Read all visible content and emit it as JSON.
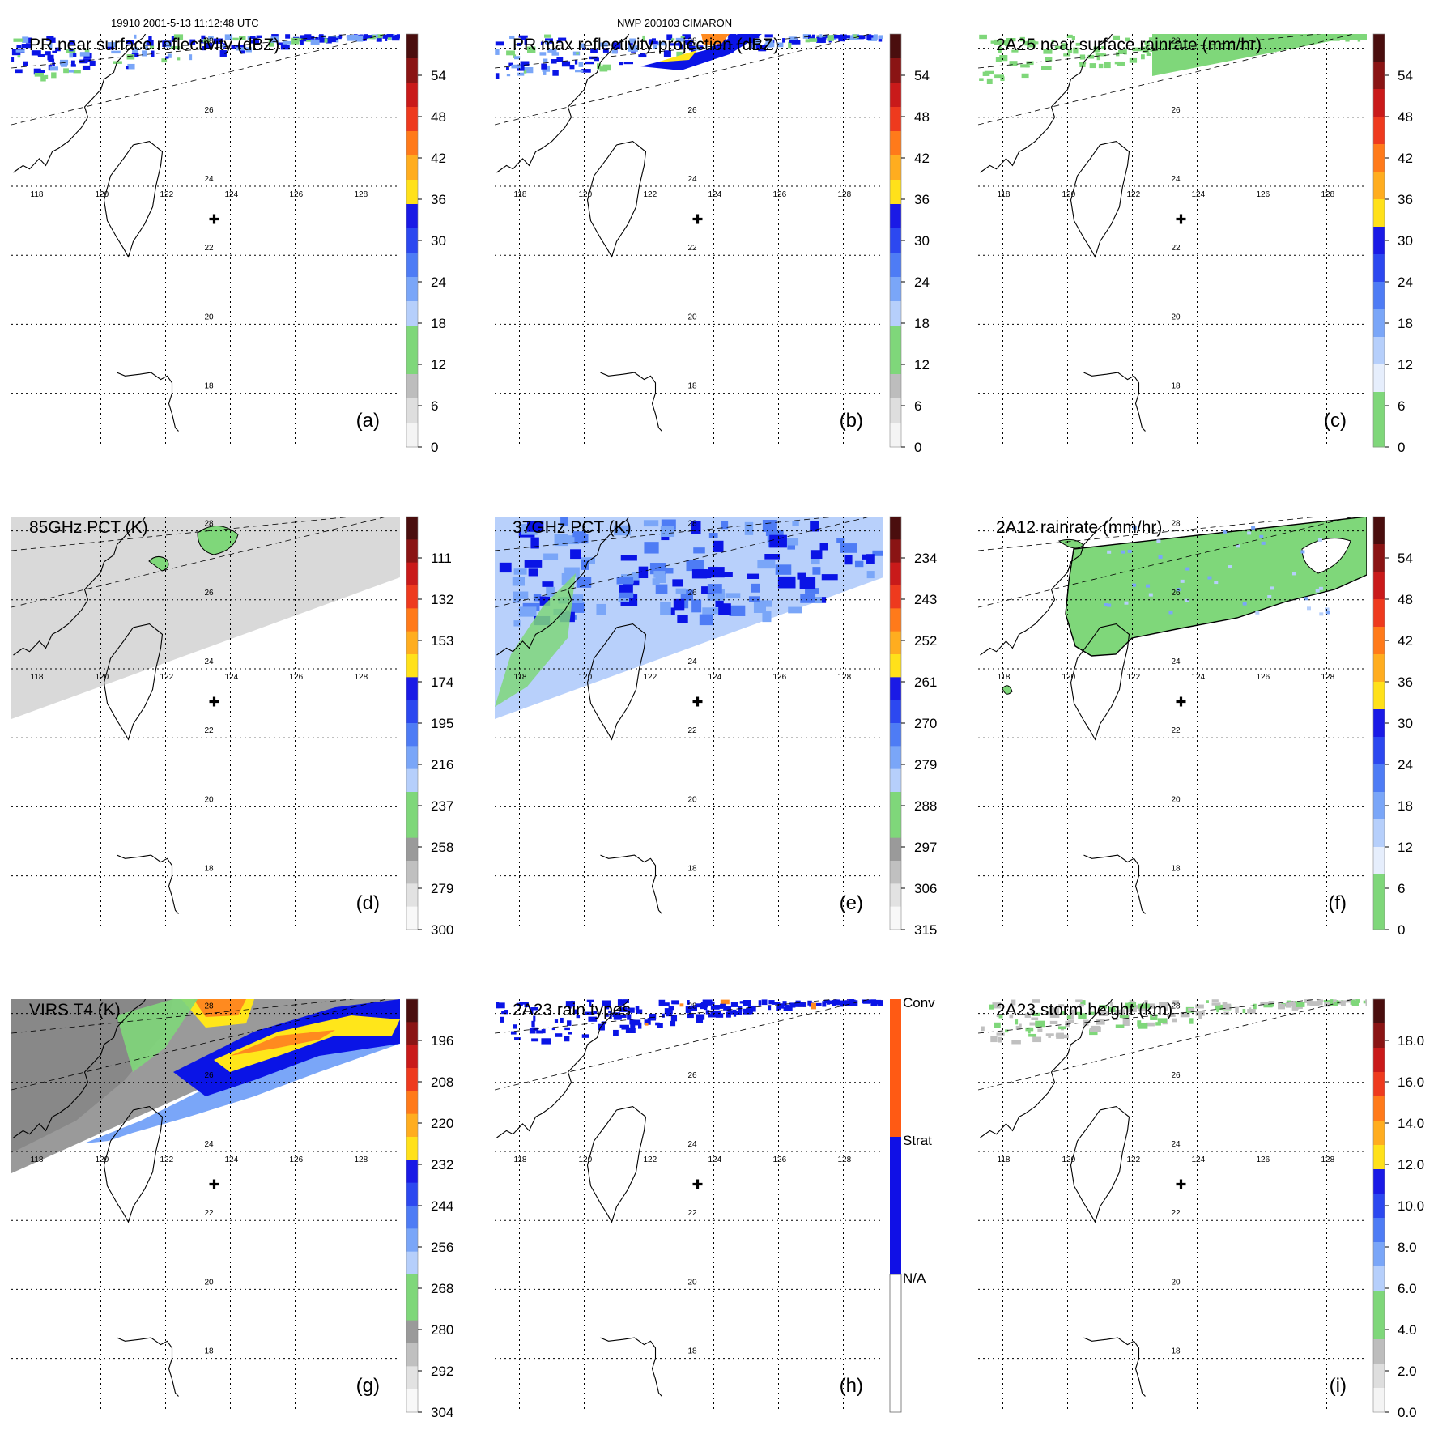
{
  "header": {
    "orbit_time": "19910 2001-5-13 11:12:48 UTC",
    "storm": "NWP 200103 CIMARON"
  },
  "map_axes": {
    "lon_labels": [
      "118",
      "120",
      "122",
      "124",
      "126",
      "128"
    ],
    "lat_labels": [
      "28",
      "26",
      "24",
      "22",
      "20",
      "18"
    ],
    "storm_center": {
      "lon": 123.5,
      "lat": 23.05
    }
  },
  "panels": [
    {
      "id": "a",
      "title": "PR near surface reflectivity (dBZ)",
      "letter": "(a)",
      "swath": "pr",
      "colorbar": {
        "labels": [
          "54",
          "48",
          "42",
          "36",
          "30",
          "24",
          "18",
          "12",
          "6",
          "0"
        ]
      }
    },
    {
      "id": "b",
      "title": "PR max reflectivity projection (dBZ)",
      "letter": "(b)",
      "swath": "pr",
      "colorbar": {
        "labels": [
          "54",
          "48",
          "42",
          "36",
          "30",
          "24",
          "18",
          "12",
          "6",
          "0"
        ]
      }
    },
    {
      "id": "c",
      "title": "2A25 near surface rainrate (mm/hr)",
      "letter": "(c)",
      "swath": "pr",
      "colorbar": {
        "labels": [
          "54",
          "48",
          "42",
          "36",
          "30",
          "24",
          "18",
          "12",
          "6",
          "0"
        ]
      }
    },
    {
      "id": "d",
      "title": "85GHz PCT (K)",
      "letter": "(d)",
      "swath": "tmi",
      "colorbar": {
        "labels": [
          "111",
          "132",
          "153",
          "174",
          "195",
          "216",
          "237",
          "258",
          "279",
          "300"
        ]
      }
    },
    {
      "id": "e",
      "title": "37GHz PCT (K)",
      "letter": "(e)",
      "swath": "tmi",
      "colorbar": {
        "labels": [
          "234",
          "243",
          "252",
          "261",
          "270",
          "279",
          "288",
          "297",
          "306",
          "315"
        ]
      }
    },
    {
      "id": "f",
      "title": "2A12 rainrate (mm/hr)",
      "letter": "(f)",
      "swath": "tmi",
      "colorbar": {
        "labels": [
          "54",
          "48",
          "42",
          "36",
          "30",
          "24",
          "18",
          "12",
          "6",
          "0"
        ]
      }
    },
    {
      "id": "g",
      "title": "VIRS T4 (K)",
      "letter": "(g)",
      "swath": "virs",
      "colorbar": {
        "labels": [
          "196",
          "208",
          "220",
          "232",
          "244",
          "256",
          "268",
          "280",
          "292",
          "304"
        ]
      }
    },
    {
      "id": "h",
      "title": "2A23 rain types",
      "letter": "(h)",
      "swath": "pr",
      "colorbar": {
        "labels": [
          "Conv",
          "Strat",
          "N/A"
        ]
      }
    },
    {
      "id": "i",
      "title": "2A23 storm height (km)",
      "letter": "(i)",
      "swath": "pr",
      "colorbar": {
        "labels": [
          "18.0",
          "16.0",
          "14.0",
          "12.0",
          "10.0",
          "8.0",
          "6.0",
          "4.0",
          "2.0",
          "0.0"
        ]
      }
    }
  ],
  "colors": {
    "green": "#7fd77a",
    "blue_dark": "#0a14e6",
    "blue_light": "#8fb8f5",
    "orange": "#ff8a1f",
    "yellow": "#ffe61a",
    "gray": "#c8c8c8"
  }
}
